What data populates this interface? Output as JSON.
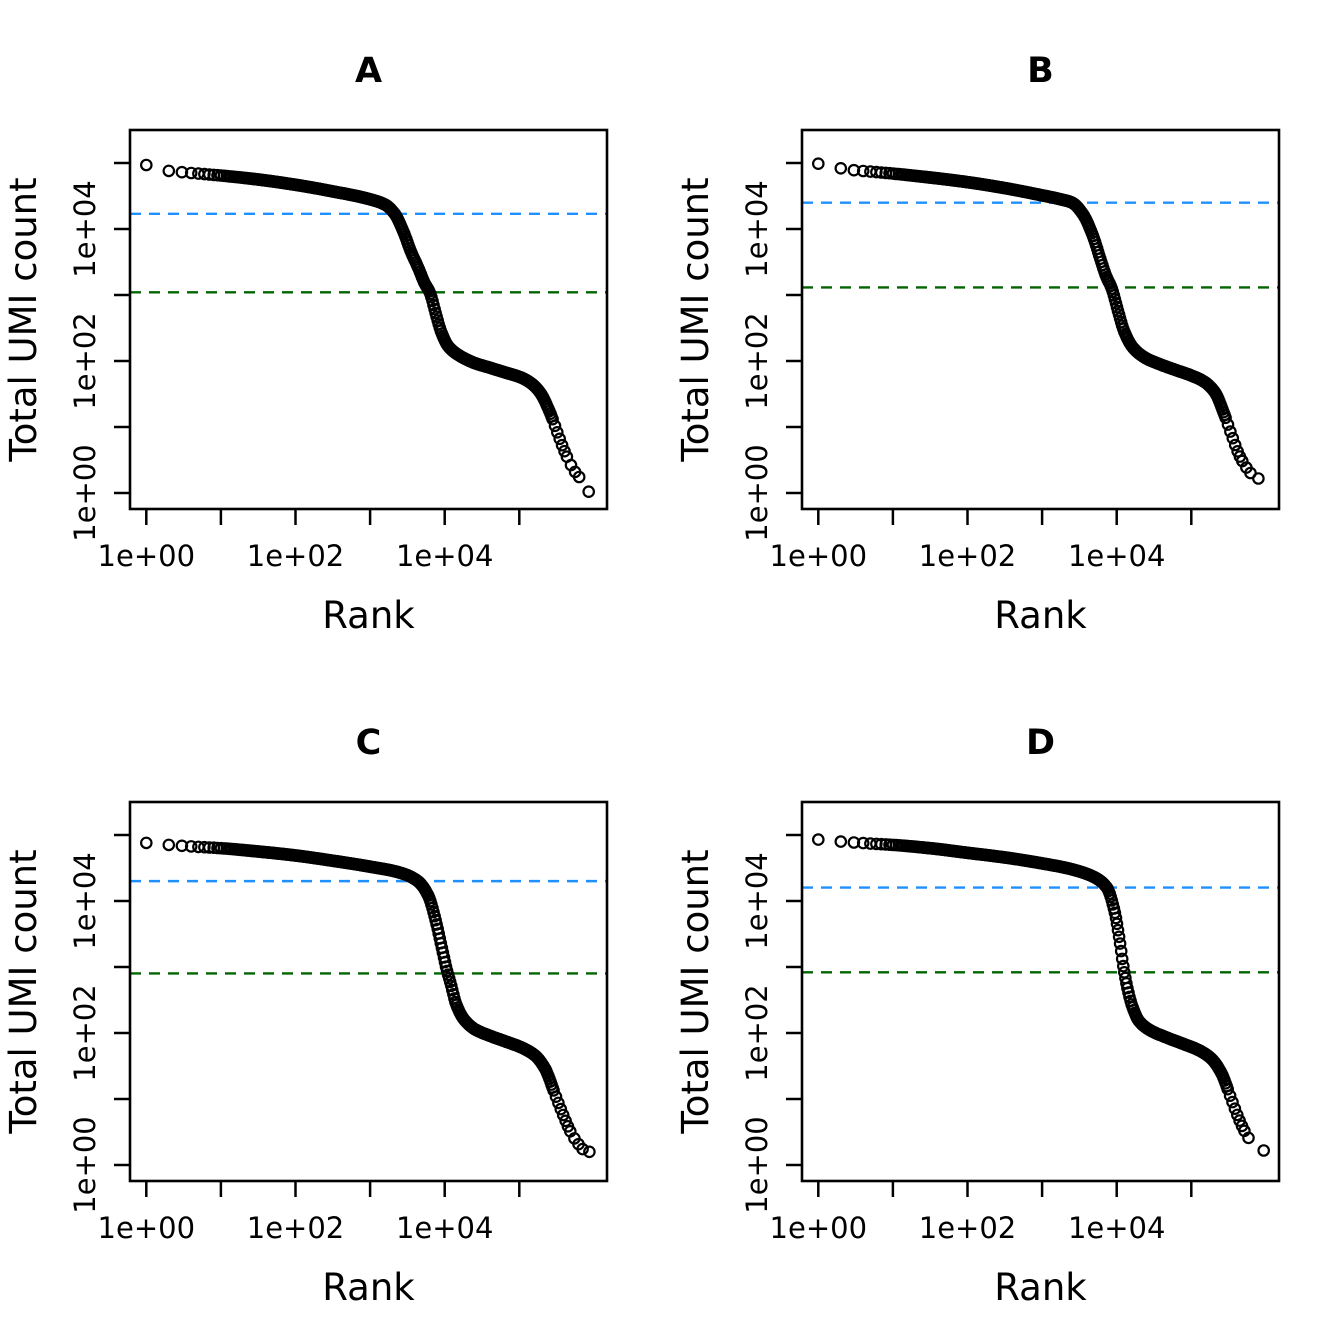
{
  "figure": {
    "background": "#ffffff",
    "marker": "open-circle",
    "marker_color": "#000000"
  },
  "chart_data": [
    {
      "id": "A",
      "type": "scatter",
      "title": "A",
      "xlabel": "Rank",
      "ylabel": "Total UMI count",
      "x_scale": "log",
      "y_scale": "log",
      "xlim_log10": [
        -0.22,
        6.18
      ],
      "ylim_log10": [
        -0.24,
        5.5
      ],
      "x_tick_values": [
        1,
        10,
        100,
        1000,
        10000,
        100000
      ],
      "x_tick_labels": [
        "1e+00",
        "",
        "1e+02",
        "",
        "1e+04",
        ""
      ],
      "y_tick_values": [
        1,
        10,
        100,
        1000,
        10000,
        100000
      ],
      "y_tick_labels": [
        "1e+00",
        "",
        "1e+02",
        "",
        "1e+04",
        ""
      ],
      "grid": false,
      "lines": [
        {
          "name": "blue-dashed-line",
          "value": 17000,
          "color": "#1E90FF",
          "style": "dashed"
        },
        {
          "name": "green-dashed-line",
          "value": 1100,
          "color": "#006400",
          "style": "dashed"
        }
      ],
      "curve_anchors_log10": [
        [
          0.0,
          4.97
        ],
        [
          0.3,
          4.88
        ],
        [
          0.48,
          4.86
        ],
        [
          0.7,
          4.84
        ],
        [
          1.0,
          4.81
        ],
        [
          1.5,
          4.75
        ],
        [
          2.0,
          4.67
        ],
        [
          2.5,
          4.57
        ],
        [
          3.0,
          4.45
        ],
        [
          3.2,
          4.37
        ],
        [
          3.33,
          4.23
        ],
        [
          3.45,
          3.95
        ],
        [
          3.55,
          3.65
        ],
        [
          3.65,
          3.4
        ],
        [
          3.73,
          3.18
        ],
        [
          3.8,
          3.04
        ],
        [
          3.88,
          2.72
        ],
        [
          3.95,
          2.45
        ],
        [
          4.05,
          2.22
        ],
        [
          4.2,
          2.08
        ],
        [
          4.4,
          1.97
        ],
        [
          4.6,
          1.9
        ],
        [
          4.8,
          1.83
        ],
        [
          5.0,
          1.76
        ],
        [
          5.15,
          1.67
        ],
        [
          5.28,
          1.52
        ],
        [
          5.4,
          1.25
        ],
        [
          5.5,
          0.95
        ],
        [
          5.6,
          0.65
        ],
        [
          5.68,
          0.45
        ],
        [
          5.76,
          0.3
        ],
        [
          5.82,
          0.22
        ]
      ],
      "end_point_log10": [
        5.93,
        0.02
      ]
    },
    {
      "id": "B",
      "type": "scatter",
      "title": "B",
      "xlabel": "Rank",
      "ylabel": "Total UMI count",
      "x_scale": "log",
      "y_scale": "log",
      "xlim_log10": [
        -0.22,
        6.18
      ],
      "ylim_log10": [
        -0.24,
        5.5
      ],
      "x_tick_values": [
        1,
        10,
        100,
        1000,
        10000,
        100000
      ],
      "x_tick_labels": [
        "1e+00",
        "",
        "1e+02",
        "",
        "1e+04",
        ""
      ],
      "y_tick_values": [
        1,
        10,
        100,
        1000,
        10000,
        100000
      ],
      "y_tick_labels": [
        "1e+00",
        "",
        "1e+02",
        "",
        "1e+04",
        ""
      ],
      "grid": false,
      "lines": [
        {
          "name": "blue-dashed-line",
          "value": 25000,
          "color": "#1E90FF",
          "style": "dashed"
        },
        {
          "name": "green-dashed-line",
          "value": 1300,
          "color": "#006400",
          "style": "dashed"
        }
      ],
      "curve_anchors_log10": [
        [
          0.0,
          4.99
        ],
        [
          0.3,
          4.92
        ],
        [
          0.48,
          4.89
        ],
        [
          0.7,
          4.87
        ],
        [
          1.0,
          4.84
        ],
        [
          1.5,
          4.78
        ],
        [
          2.0,
          4.71
        ],
        [
          2.5,
          4.62
        ],
        [
          3.0,
          4.51
        ],
        [
          3.25,
          4.45
        ],
        [
          3.4,
          4.4
        ],
        [
          3.55,
          4.22
        ],
        [
          3.68,
          3.9
        ],
        [
          3.78,
          3.55
        ],
        [
          3.86,
          3.28
        ],
        [
          3.93,
          3.11
        ],
        [
          4.02,
          2.75
        ],
        [
          4.1,
          2.45
        ],
        [
          4.22,
          2.2
        ],
        [
          4.38,
          2.05
        ],
        [
          4.58,
          1.95
        ],
        [
          4.8,
          1.86
        ],
        [
          5.0,
          1.78
        ],
        [
          5.18,
          1.68
        ],
        [
          5.32,
          1.52
        ],
        [
          5.44,
          1.2
        ],
        [
          5.54,
          0.88
        ],
        [
          5.64,
          0.58
        ],
        [
          5.73,
          0.4
        ],
        [
          5.81,
          0.28
        ]
      ],
      "end_point_log10": [
        5.9,
        0.22
      ]
    },
    {
      "id": "C",
      "type": "scatter",
      "title": "C",
      "xlabel": "Rank",
      "ylabel": "Total UMI count",
      "x_scale": "log",
      "y_scale": "log",
      "xlim_log10": [
        -0.22,
        6.18
      ],
      "ylim_log10": [
        -0.24,
        5.5
      ],
      "x_tick_values": [
        1,
        10,
        100,
        1000,
        10000,
        100000
      ],
      "x_tick_labels": [
        "1e+00",
        "",
        "1e+02",
        "",
        "1e+04",
        ""
      ],
      "y_tick_values": [
        1,
        10,
        100,
        1000,
        10000,
        100000
      ],
      "y_tick_labels": [
        "1e+00",
        "",
        "1e+02",
        "",
        "1e+04",
        ""
      ],
      "grid": false,
      "lines": [
        {
          "name": "blue-dashed-line",
          "value": 20000,
          "color": "#1E90FF",
          "style": "dashed"
        },
        {
          "name": "green-dashed-line",
          "value": 800,
          "color": "#006400",
          "style": "dashed"
        }
      ],
      "curve_anchors_log10": [
        [
          0.0,
          4.88
        ],
        [
          0.3,
          4.85
        ],
        [
          0.7,
          4.82
        ],
        [
          1.0,
          4.8
        ],
        [
          1.5,
          4.75
        ],
        [
          2.0,
          4.69
        ],
        [
          2.5,
          4.61
        ],
        [
          3.0,
          4.52
        ],
        [
          3.4,
          4.43
        ],
        [
          3.64,
          4.3
        ],
        [
          3.78,
          4.08
        ],
        [
          3.88,
          3.7
        ],
        [
          3.96,
          3.3
        ],
        [
          4.03,
          2.95
        ],
        [
          4.08,
          2.75
        ],
        [
          4.15,
          2.45
        ],
        [
          4.25,
          2.22
        ],
        [
          4.4,
          2.06
        ],
        [
          4.6,
          1.96
        ],
        [
          4.82,
          1.87
        ],
        [
          5.05,
          1.77
        ],
        [
          5.22,
          1.65
        ],
        [
          5.35,
          1.45
        ],
        [
          5.47,
          1.1
        ],
        [
          5.58,
          0.78
        ],
        [
          5.68,
          0.52
        ],
        [
          5.77,
          0.35
        ],
        [
          5.85,
          0.24
        ]
      ],
      "end_point_log10": [
        5.94,
        0.2
      ]
    },
    {
      "id": "D",
      "type": "scatter",
      "title": "D",
      "xlabel": "Rank",
      "ylabel": "Total UMI count",
      "x_scale": "log",
      "y_scale": "log",
      "xlim_log10": [
        -0.22,
        6.18
      ],
      "ylim_log10": [
        -0.24,
        5.5
      ],
      "x_tick_values": [
        1,
        10,
        100,
        1000,
        10000,
        100000
      ],
      "x_tick_labels": [
        "1e+00",
        "",
        "1e+02",
        "",
        "1e+04",
        ""
      ],
      "y_tick_values": [
        1,
        10,
        100,
        1000,
        10000,
        100000
      ],
      "y_tick_labels": [
        "1e+00",
        "",
        "1e+02",
        "",
        "1e+04",
        ""
      ],
      "grid": false,
      "lines": [
        {
          "name": "blue-dashed-line",
          "value": 16000,
          "color": "#1E90FF",
          "style": "dashed"
        },
        {
          "name": "green-dashed-line",
          "value": 830,
          "color": "#006400",
          "style": "dashed"
        }
      ],
      "curve_anchors_log10": [
        [
          0.0,
          4.93
        ],
        [
          0.3,
          4.9
        ],
        [
          0.7,
          4.87
        ],
        [
          1.0,
          4.85
        ],
        [
          1.5,
          4.8
        ],
        [
          2.0,
          4.73
        ],
        [
          2.5,
          4.66
        ],
        [
          3.0,
          4.57
        ],
        [
          3.4,
          4.48
        ],
        [
          3.7,
          4.36
        ],
        [
          3.87,
          4.2
        ],
        [
          3.97,
          3.85
        ],
        [
          4.04,
          3.4
        ],
        [
          4.09,
          3.0
        ],
        [
          4.14,
          2.7
        ],
        [
          4.21,
          2.4
        ],
        [
          4.3,
          2.18
        ],
        [
          4.45,
          2.04
        ],
        [
          4.65,
          1.94
        ],
        [
          4.88,
          1.84
        ],
        [
          5.1,
          1.74
        ],
        [
          5.27,
          1.61
        ],
        [
          5.4,
          1.4
        ],
        [
          5.52,
          1.05
        ],
        [
          5.63,
          0.72
        ],
        [
          5.73,
          0.48
        ],
        [
          5.82,
          0.32
        ]
      ],
      "end_point_log10": [
        5.97,
        0.22
      ]
    }
  ]
}
